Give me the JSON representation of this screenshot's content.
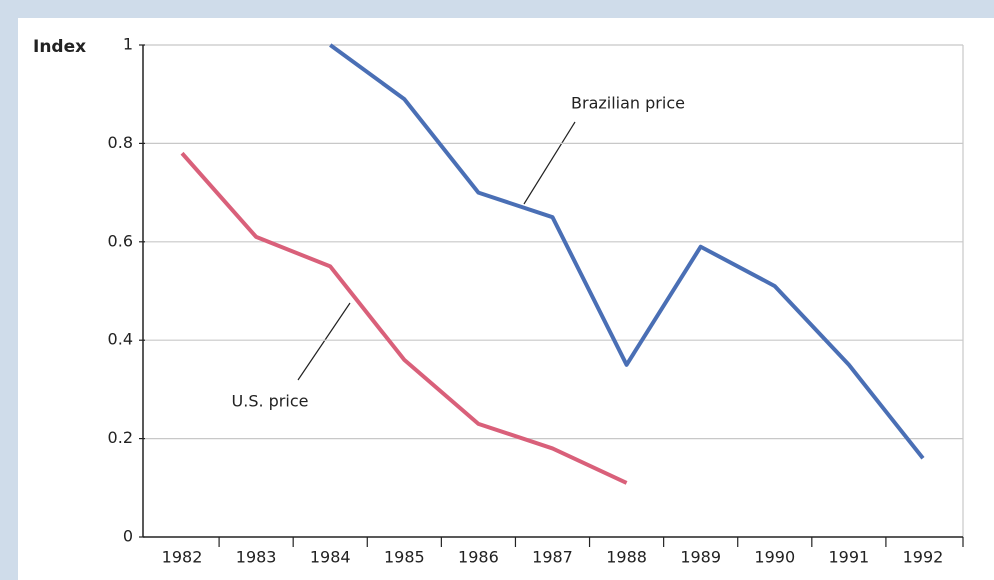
{
  "chart_data": {
    "type": "line",
    "ylabel": "Index",
    "categories": [
      "1982",
      "1983",
      "1984",
      "1985",
      "1986",
      "1987",
      "1988",
      "1989",
      "1990",
      "1991",
      "1992"
    ],
    "series": [
      {
        "name": "Brazilian price",
        "color": "#4a6fb5",
        "values": [
          null,
          null,
          1.0,
          0.89,
          0.7,
          0.65,
          0.35,
          0.59,
          0.51,
          0.35,
          0.16
        ]
      },
      {
        "name": "U.S. price",
        "color": "#d9607a",
        "values": [
          0.78,
          0.61,
          0.55,
          0.36,
          0.23,
          0.18,
          0.11,
          null,
          null,
          null,
          null
        ]
      }
    ],
    "ylim": [
      0,
      1
    ],
    "yticks": [
      0,
      0.2,
      0.4,
      0.6,
      0.8,
      1
    ],
    "grid": true
  }
}
